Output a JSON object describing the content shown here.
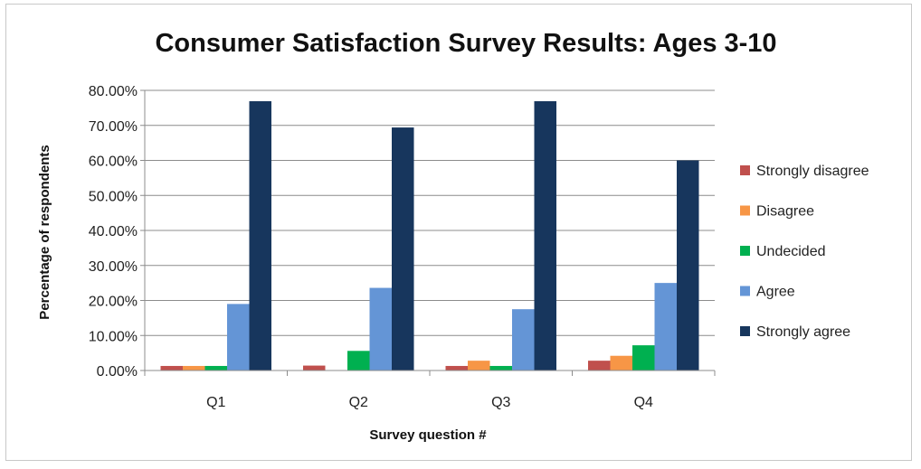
{
  "chart_data": {
    "type": "bar",
    "title": "Consumer Satisfaction Survey Results: Ages 3-10",
    "xlabel": "Survey question #",
    "ylabel": "Percentage of respondents",
    "categories": [
      "Q1",
      "Q2",
      "Q3",
      "Q4"
    ],
    "ylim": [
      0,
      80
    ],
    "yticks": [
      0,
      10,
      20,
      30,
      40,
      50,
      60,
      70,
      80
    ],
    "ytick_labels": [
      "0.00%",
      "10.00%",
      "20.00%",
      "30.00%",
      "40.00%",
      "50.00%",
      "60.00%",
      "70.00%",
      "80.00%"
    ],
    "grid": "horizontal",
    "legend_position": "right",
    "series": [
      {
        "name": "Strongly disagree",
        "color": "#c0504d",
        "values": [
          1.3,
          1.4,
          1.3,
          2.8
        ]
      },
      {
        "name": "Disagree",
        "color": "#f79646",
        "values": [
          1.3,
          0,
          2.8,
          4.2
        ]
      },
      {
        "name": "Undecided",
        "color": "#00b050",
        "values": [
          1.3,
          5.6,
          1.3,
          7.2
        ]
      },
      {
        "name": "Agree",
        "color": "#6495d6",
        "values": [
          19,
          23.6,
          17.5,
          25
        ]
      },
      {
        "name": "Strongly agree",
        "color": "#17365d",
        "values": [
          76.9,
          69.4,
          76.9,
          60
        ]
      }
    ]
  }
}
